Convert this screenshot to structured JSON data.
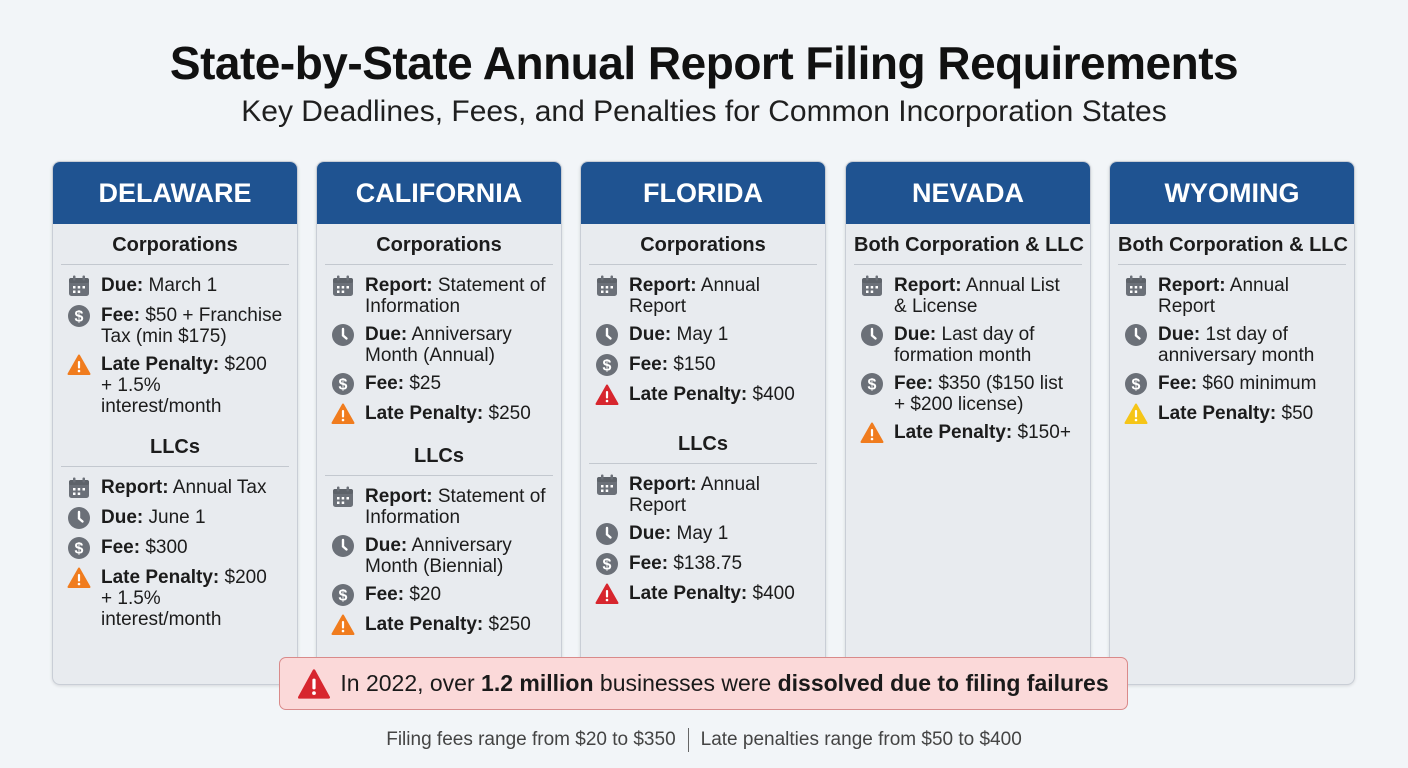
{
  "title": "State-by-State Annual Report Filing Requirements",
  "subtitle": "Key Deadlines, Fees, and Penalties for Common Incorporation States",
  "colors": {
    "header": "#1f5391",
    "orange": "#f07c1e",
    "red": "#d7262e",
    "yellow": "#f5c518",
    "gray": "#6b7078"
  },
  "states": [
    {
      "name": "DELAWARE",
      "sections": [
        {
          "title": "Corporations",
          "items": [
            {
              "icon": "calendar-icon",
              "label": "Due:",
              "value": "March 1"
            },
            {
              "icon": "dollar-icon",
              "label": "Fee:",
              "value": "$50 + Franchise Tax (min $175)"
            },
            {
              "icon": "warning-icon",
              "color": "orange",
              "label": "Late Penalty:",
              "value": "$200 + 1.5% interest/month"
            }
          ]
        },
        {
          "title": "LLCs",
          "items": [
            {
              "icon": "calendar-icon",
              "label": "Report:",
              "value": "Annual Tax"
            },
            {
              "icon": "clock-icon",
              "label": "Due:",
              "value": "June 1"
            },
            {
              "icon": "dollar-icon",
              "label": "Fee:",
              "value": "$300"
            },
            {
              "icon": "warning-icon",
              "color": "orange",
              "label": "Late Penalty:",
              "value": "$200 + 1.5% interest/month"
            }
          ]
        }
      ]
    },
    {
      "name": "CALIFORNIA",
      "sections": [
        {
          "title": "Corporations",
          "items": [
            {
              "icon": "calendar-icon",
              "label": "Report:",
              "value": "Statement of Information"
            },
            {
              "icon": "clock-icon",
              "label": "Due:",
              "value": "Anniversary Month (Annual)"
            },
            {
              "icon": "dollar-icon",
              "label": "Fee:",
              "value": "$25"
            },
            {
              "icon": "warning-icon",
              "color": "orange",
              "label": "Late Penalty:",
              "value": "$250"
            }
          ]
        },
        {
          "title": "LLCs",
          "items": [
            {
              "icon": "calendar-icon",
              "label": "Report:",
              "value": "Statement of Information"
            },
            {
              "icon": "clock-icon",
              "label": "Due:",
              "value": "Anniversary Month (Biennial)"
            },
            {
              "icon": "dollar-icon",
              "label": "Fee:",
              "value": "$20"
            },
            {
              "icon": "warning-icon",
              "color": "orange",
              "label": "Late Penalty:",
              "value": "$250"
            }
          ]
        }
      ]
    },
    {
      "name": "FLORIDA",
      "sections": [
        {
          "title": "Corporations",
          "items": [
            {
              "icon": "calendar-icon",
              "label": "Report:",
              "value": "Annual Report"
            },
            {
              "icon": "clock-icon",
              "label": "Due:",
              "value": "May 1"
            },
            {
              "icon": "dollar-icon",
              "label": "Fee:",
              "value": "$150"
            },
            {
              "icon": "warning-icon",
              "color": "red",
              "label": "Late Penalty:",
              "value": "$400"
            }
          ]
        },
        {
          "title": "LLCs",
          "items": [
            {
              "icon": "calendar-icon",
              "label": "Report:",
              "value": "Annual Report"
            },
            {
              "icon": "clock-icon",
              "label": "Due:",
              "value": "May 1"
            },
            {
              "icon": "dollar-icon",
              "label": "Fee:",
              "value": "$138.75"
            },
            {
              "icon": "warning-icon",
              "color": "red",
              "label": "Late Penalty:",
              "value": "$400"
            }
          ]
        }
      ]
    },
    {
      "name": "NEVADA",
      "sections": [
        {
          "title": "Both Corporation & LLC",
          "items": [
            {
              "icon": "calendar-icon",
              "label": "Report:",
              "value": "Annual List & License"
            },
            {
              "icon": "clock-icon",
              "label": "Due:",
              "value": "Last day of formation month"
            },
            {
              "icon": "dollar-icon",
              "label": "Fee:",
              "value": "$350 ($150 list + $200 license)"
            },
            {
              "icon": "warning-icon",
              "color": "orange",
              "label": "Late Penalty:",
              "value": "$150+"
            }
          ]
        }
      ]
    },
    {
      "name": "WYOMING",
      "sections": [
        {
          "title": "Both Corporation & LLC",
          "items": [
            {
              "icon": "calendar-icon",
              "label": "Report:",
              "value": "Annual Report"
            },
            {
              "icon": "clock-icon",
              "label": "Due:",
              "value": "1st day of anniversary month"
            },
            {
              "icon": "dollar-icon",
              "label": "Fee:",
              "value": "$60 minimum"
            },
            {
              "icon": "warning-icon",
              "color": "yellow",
              "label": "Late Penalty:",
              "value": "$50"
            }
          ]
        }
      ]
    }
  ],
  "alert": {
    "pre": "In 2022, over ",
    "bold1": "1.2 million",
    "mid": " businesses were ",
    "bold2": "dissolved due to filing failures"
  },
  "footer": {
    "left": "Filing fees range from $20 to $350",
    "right": "Late penalties range from $50 to $400"
  }
}
